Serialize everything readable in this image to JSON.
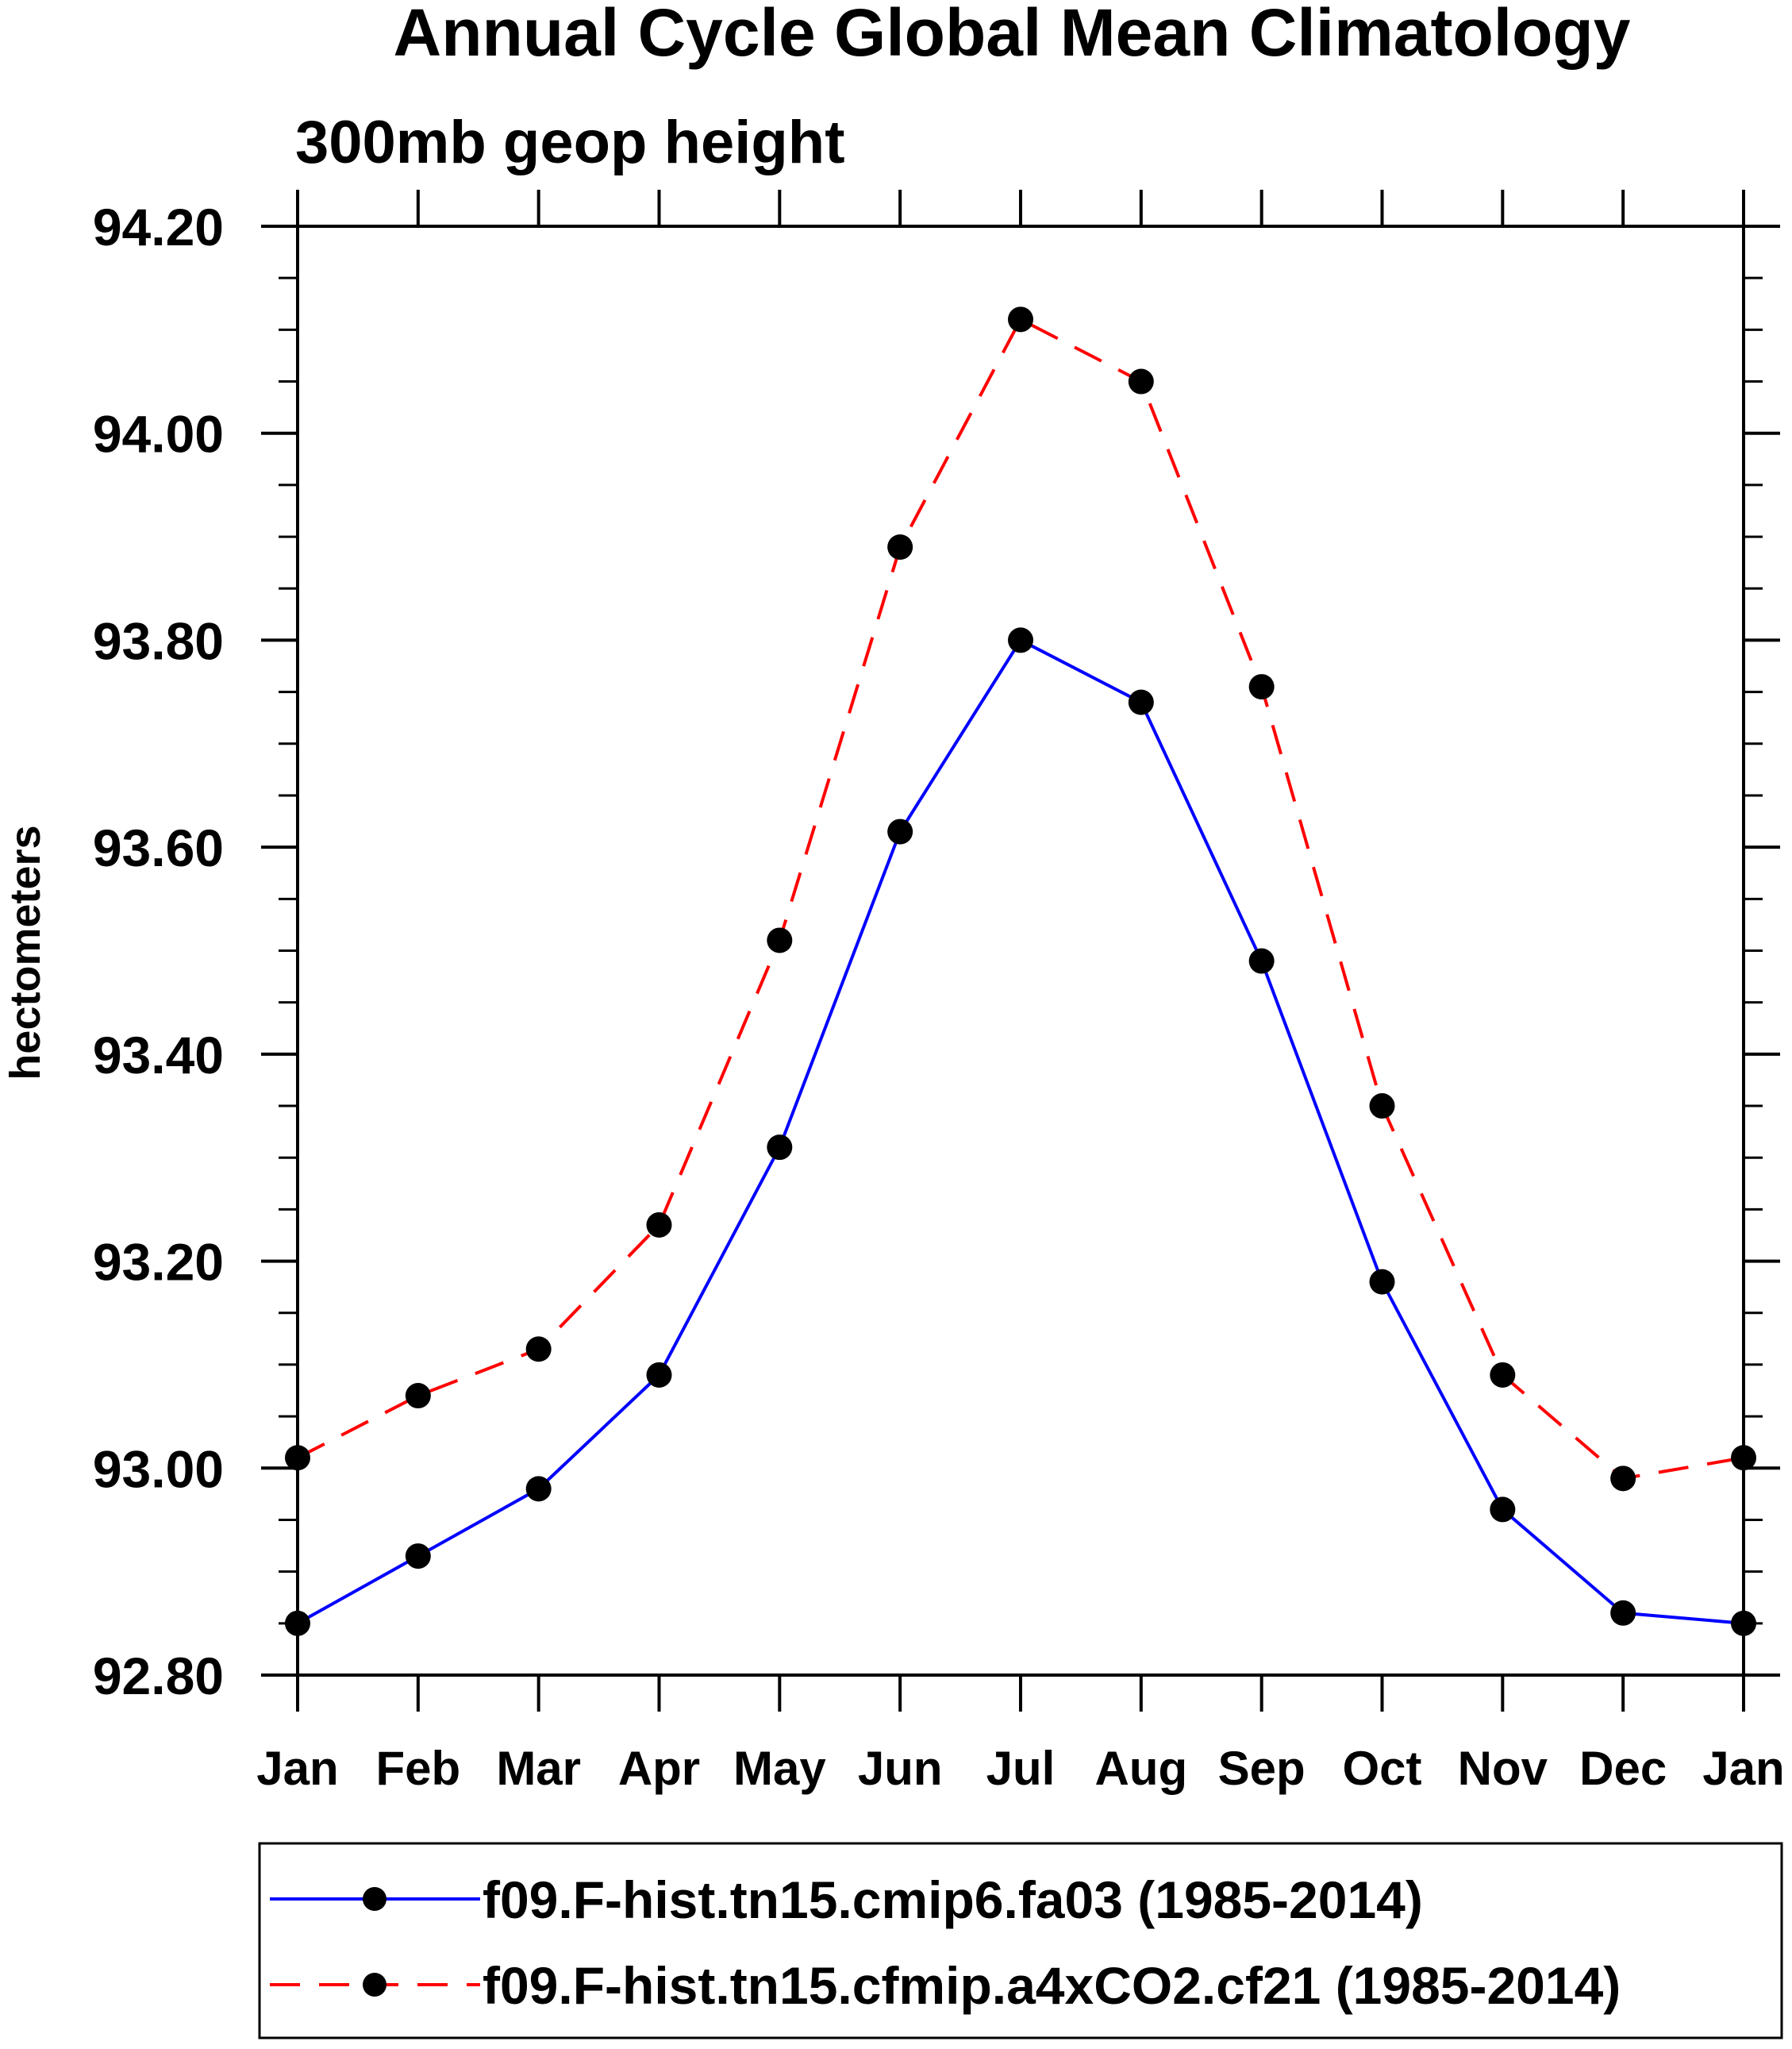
{
  "chart_data": {
    "type": "line",
    "title": "Annual Cycle Global Mean Climatology",
    "subtitle": "300mb geop height",
    "xlabel": "",
    "ylabel": "hectometers",
    "ylim": [
      92.8,
      94.2
    ],
    "yticks": [
      "92.80",
      "93.00",
      "93.20",
      "93.40",
      "93.60",
      "93.80",
      "94.00",
      "94.20"
    ],
    "ytick_values": [
      92.8,
      93.0,
      93.2,
      93.4,
      93.6,
      93.8,
      94.0,
      94.2
    ],
    "y_minor_step": 0.05,
    "categories": [
      "Jan",
      "Feb",
      "Mar",
      "Apr",
      "May",
      "Jun",
      "Jul",
      "Aug",
      "Sep",
      "Oct",
      "Nov",
      "Dec",
      "Jan"
    ],
    "grid": false,
    "legend_position": "bottom",
    "series": [
      {
        "name": "f09.F-hist.tn15.cmip6.fa03 (1985-2014)",
        "color": "#0000ff",
        "dash": "solid",
        "marker": "filled-circle",
        "values": [
          92.85,
          92.915,
          92.98,
          93.09,
          93.31,
          93.615,
          93.8,
          93.74,
          93.49,
          93.18,
          92.96,
          92.86,
          92.85
        ]
      },
      {
        "name": "f09.F-hist.tn15.cfmip.a4xCO2.cf21 (1985-2014)",
        "color": "#ff0000",
        "dash": "dashed",
        "marker": "filled-circle",
        "values": [
          93.01,
          93.07,
          93.115,
          93.235,
          93.51,
          93.89,
          94.11,
          94.05,
          93.755,
          93.35,
          93.09,
          92.99,
          93.01
        ]
      }
    ]
  }
}
